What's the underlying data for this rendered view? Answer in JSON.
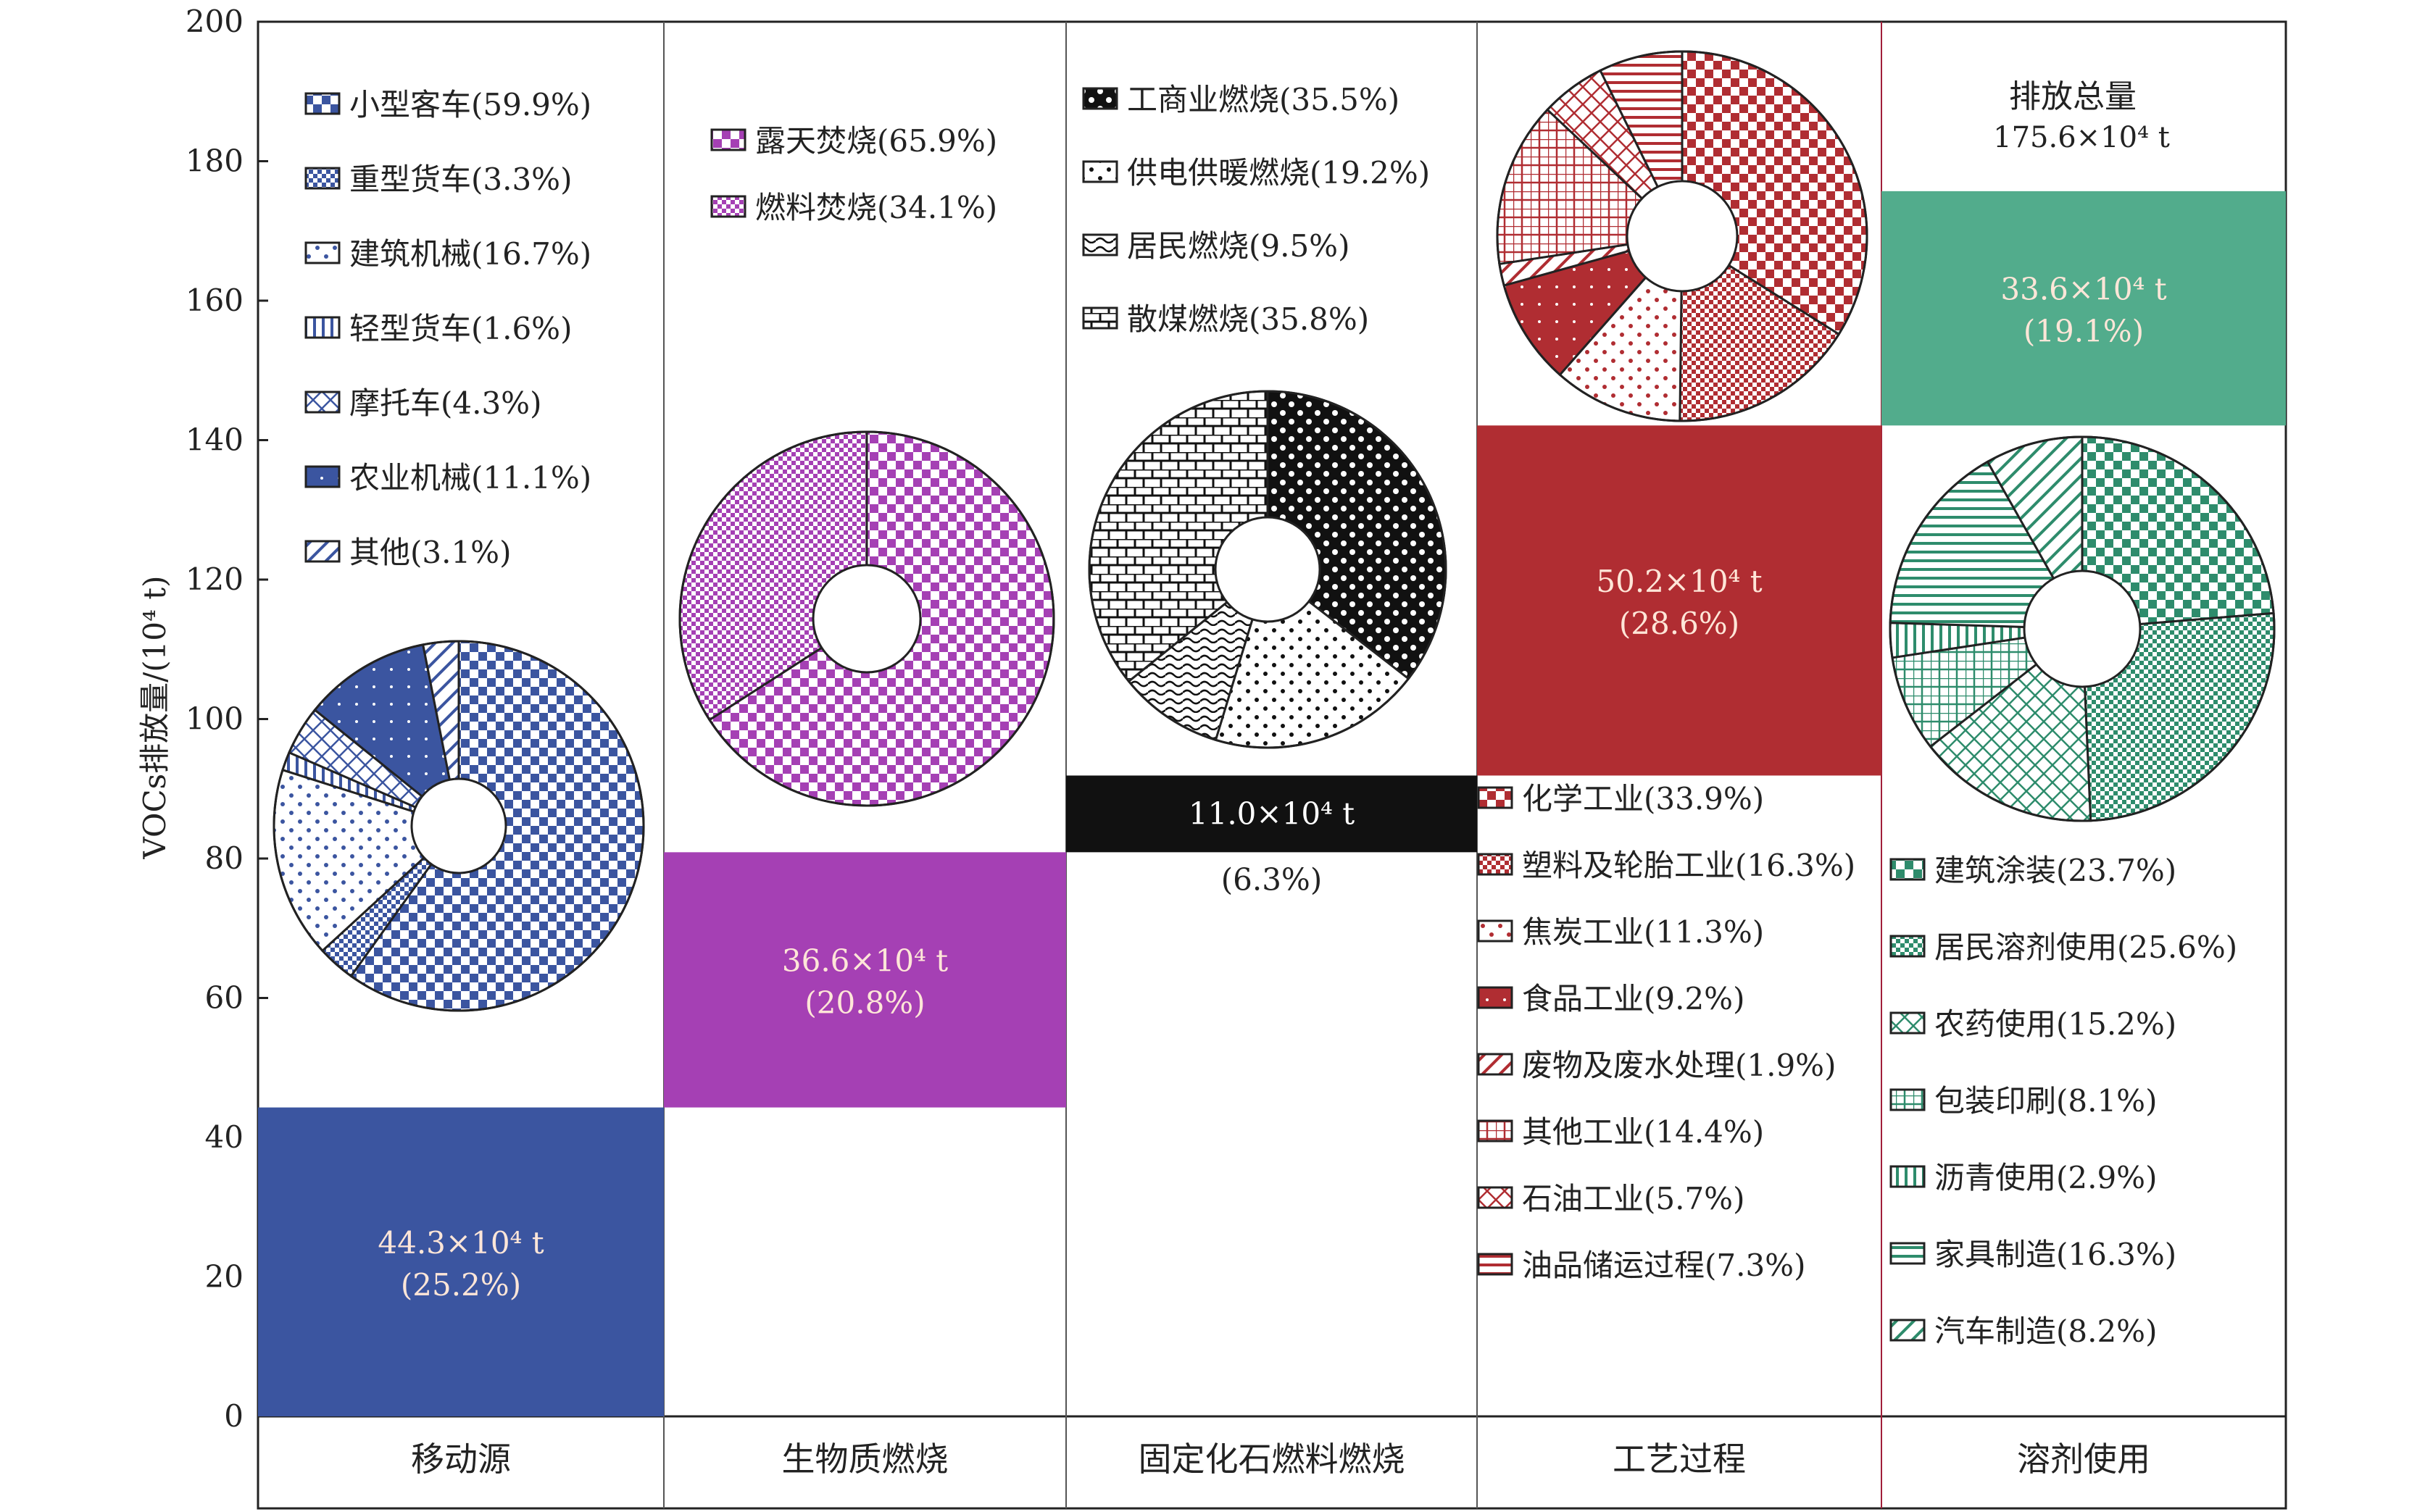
{
  "chart_data": {
    "type": "bar",
    "ylabel": "VOCs排放量/(10⁴ t)",
    "ylim": [
      0,
      200
    ],
    "yticks": [
      0,
      20,
      40,
      60,
      80,
      100,
      120,
      140,
      160,
      180,
      200
    ],
    "total": {
      "title": "排放总量",
      "value": "175.6×10⁴ t"
    },
    "categories": [
      "移动源",
      "生物质燃烧",
      "固定化石燃料燃烧",
      "工艺过程",
      "溶剂使用"
    ],
    "bars": [
      {
        "category": "移动源",
        "base": 0,
        "value": 44.3,
        "color": "#3b55a0",
        "label": "44.3×10⁴ t",
        "percent": "(25.2%)"
      },
      {
        "category": "生物质燃烧",
        "base": 44.3,
        "value": 36.6,
        "color": "#a540b4",
        "label": "36.6×10⁴ t",
        "percent": "(20.8%)"
      },
      {
        "category": "固定化石燃料燃烧",
        "base": 80.9,
        "value": 11.0,
        "color": "#111111",
        "label": "11.0×10⁴ t",
        "percent": "(6.3%)"
      },
      {
        "category": "工艺过程",
        "base": 91.9,
        "value": 50.2,
        "color": "#b02d32",
        "label": "50.2×10⁴ t",
        "percent": "(28.6%)"
      },
      {
        "category": "溶剂使用",
        "base": 142.1,
        "value": 33.6,
        "color": "#52ac8c",
        "label": "33.6×10⁴ t",
        "percent": "(19.1%)"
      }
    ],
    "donuts": [
      {
        "category": "移动源",
        "color": "#3b55a0",
        "slices": [
          {
            "name": "小型客车",
            "label": "小型客车(59.9%)",
            "value": 59.9
          },
          {
            "name": "重型货车",
            "label": "重型货车(3.3%)",
            "value": 3.3
          },
          {
            "name": "建筑机械",
            "label": "建筑机械(16.7%)",
            "value": 16.7
          },
          {
            "name": "轻型货车",
            "label": "轻型货车(1.6%)",
            "value": 1.6
          },
          {
            "name": "摩托车",
            "label": "摩托车(4.3%)",
            "value": 4.3
          },
          {
            "name": "农业机械",
            "label": "农业机械(11.1%)",
            "value": 11.1
          },
          {
            "name": "其他",
            "label": "其他(3.1%)",
            "value": 3.1
          }
        ]
      },
      {
        "category": "生物质燃烧",
        "color": "#a540b4",
        "slices": [
          {
            "name": "露天焚烧",
            "label": "露天焚烧(65.9%)",
            "value": 65.9
          },
          {
            "name": "燃料焚烧",
            "label": "燃料焚烧(34.1%)",
            "value": 34.1
          }
        ]
      },
      {
        "category": "固定化石燃料燃烧",
        "color": "#111111",
        "slices": [
          {
            "name": "工商业燃烧",
            "label": "工商业燃烧(35.5%)",
            "value": 35.5
          },
          {
            "name": "供电供暖燃烧",
            "label": "供电供暖燃烧(19.2%)",
            "value": 19.2
          },
          {
            "name": "居民燃烧",
            "label": "居民燃烧(9.5%)",
            "value": 9.5
          },
          {
            "name": "散煤燃烧",
            "label": "散煤燃烧(35.8%)",
            "value": 35.8
          }
        ]
      },
      {
        "category": "工艺过程",
        "color": "#b02d32",
        "slices": [
          {
            "name": "化学工业",
            "label": "化学工业(33.9%)",
            "value": 33.9
          },
          {
            "name": "塑料及轮胎工业",
            "label": "塑料及轮胎工业(16.3%)",
            "value": 16.3
          },
          {
            "name": "焦炭工业",
            "label": "焦炭工业(11.3%)",
            "value": 11.3
          },
          {
            "name": "食品工业",
            "label": "食品工业(9.2%)",
            "value": 9.2
          },
          {
            "name": "废物及废水处理",
            "label": "废物及废水处理(1.9%)",
            "value": 1.9
          },
          {
            "name": "其他工业",
            "label": "其他工业(14.4%)",
            "value": 14.4
          },
          {
            "name": "石油工业",
            "label": "石油工业(5.7%)",
            "value": 5.7
          },
          {
            "name": "油品储运过程",
            "label": "油品储运过程(7.3%)",
            "value": 7.3
          }
        ]
      },
      {
        "category": "溶剂使用",
        "color": "#2e8c6c",
        "slices": [
          {
            "name": "建筑涂装",
            "label": "建筑涂装(23.7%)",
            "value": 23.7
          },
          {
            "name": "居民溶剂使用",
            "label": "居民溶剂使用(25.6%)",
            "value": 25.6
          },
          {
            "name": "农药使用",
            "label": "农药使用(15.2%)",
            "value": 15.2
          },
          {
            "name": "包装印刷",
            "label": "包装印刷(8.1%)",
            "value": 8.1
          },
          {
            "name": "沥青使用",
            "label": "沥青使用(2.9%)",
            "value": 2.9
          },
          {
            "name": "家具制造",
            "label": "家具制造(16.3%)",
            "value": 16.3
          },
          {
            "name": "汽车制造",
            "label": "汽车制造(8.2%)",
            "value": 8.2
          }
        ]
      }
    ]
  }
}
